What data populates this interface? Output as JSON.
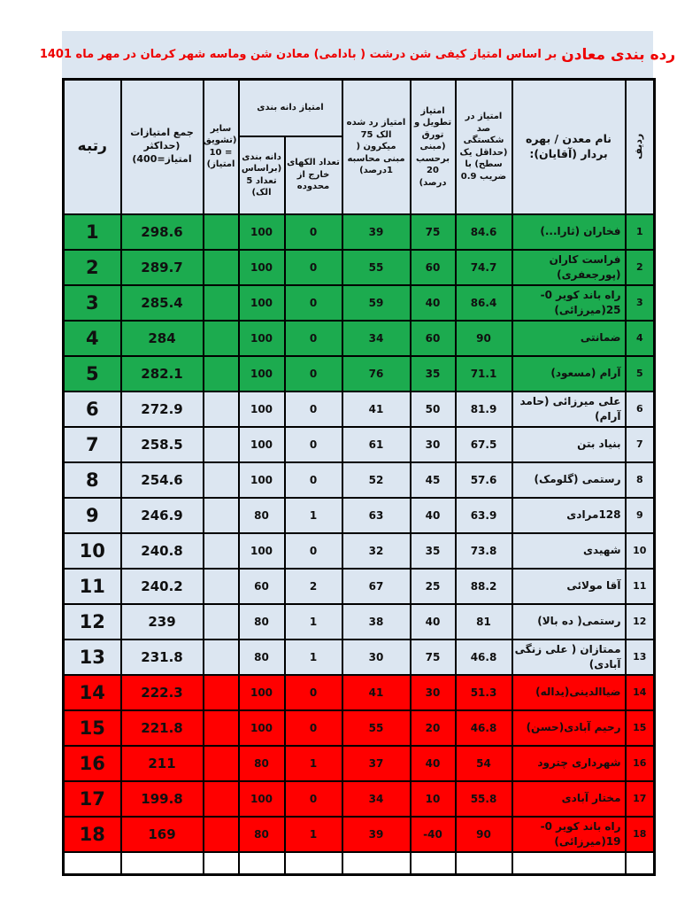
{
  "title": {
    "main": "رده بندی معادن",
    "rest": "بر اساس امتیاز کیفی  شن درشت ( بادامی) معادن شن وماسه شهر کرمان در  مهر  ماه 1401"
  },
  "colors": {
    "green": "#1cab4f",
    "red": "#ff0000",
    "light_blue_row": "#dce6f1",
    "title_red": "#ee0000"
  },
  "table": {
    "headers": {
      "radif": "ردیف",
      "name": "نام معدن / بهره بردار (آقایان):",
      "breakage": "امتیاز در صد شکستگی (حداقل یک سطح) با ضریب 0.9",
      "elongation": "امتیاز تطویل و تورق (مبنی برحسب 20 درصد)",
      "sieve75": "امتیاز  رد شده الک 75 میکرون ( مبنی محاسبه 1درصد)",
      "grading_group": "امتیاز دانه بندی",
      "out_of_range": "تعداد الکهای خارج از محدوده",
      "grading": "دانه بندی (براساس تعداد 5 الک)",
      "other": "سایر (تشویق = 10 امتیاز)",
      "total": "جمع امتیازات (حداکثر امتیاز=400)",
      "rank": "رتبه"
    },
    "rows": [
      {
        "radif": "1",
        "name": "فخاران (ثارا...)",
        "breakage": "84.6",
        "elongation": "75",
        "sieve75": "39",
        "out_of_range": "0",
        "grading": "100",
        "other": "",
        "total": "298.6",
        "rank": "1",
        "color": "green"
      },
      {
        "radif": "2",
        "name": "فراست کاران (پورجعفری)",
        "breakage": "74.7",
        "elongation": "60",
        "sieve75": "55",
        "out_of_range": "0",
        "grading": "100",
        "other": "",
        "total": "289.7",
        "rank": "2",
        "color": "green"
      },
      {
        "radif": "3",
        "name": "راه باند کویر 0-25(میرزائی)",
        "breakage": "86.4",
        "elongation": "40",
        "sieve75": "59",
        "out_of_range": "0",
        "grading": "100",
        "other": "",
        "total": "285.4",
        "rank": "3",
        "color": "green"
      },
      {
        "radif": "4",
        "name": "ضمانتی",
        "breakage": "90",
        "elongation": "60",
        "sieve75": "34",
        "out_of_range": "0",
        "grading": "100",
        "other": "",
        "total": "284",
        "rank": "4",
        "color": "green"
      },
      {
        "radif": "5",
        "name": "آرام (مسعود)",
        "breakage": "71.1",
        "elongation": "35",
        "sieve75": "76",
        "out_of_range": "0",
        "grading": "100",
        "other": "",
        "total": "282.1",
        "rank": "5",
        "color": "green"
      },
      {
        "radif": "6",
        "name": "علی میرزائی (حامد آرام)",
        "breakage": "81.9",
        "elongation": "50",
        "sieve75": "41",
        "out_of_range": "0",
        "grading": "100",
        "other": "",
        "total": "272.9",
        "rank": "6",
        "color": "blue"
      },
      {
        "radif": "7",
        "name": "بنیاد بتن",
        "breakage": "67.5",
        "elongation": "30",
        "sieve75": "61",
        "out_of_range": "0",
        "grading": "100",
        "other": "",
        "total": "258.5",
        "rank": "7",
        "color": "blue"
      },
      {
        "radif": "8",
        "name": "رستمی (گلومک)",
        "breakage": "57.6",
        "elongation": "45",
        "sieve75": "52",
        "out_of_range": "0",
        "grading": "100",
        "other": "",
        "total": "254.6",
        "rank": "8",
        "color": "blue"
      },
      {
        "radif": "9",
        "name": "128مرادی",
        "breakage": "63.9",
        "elongation": "40",
        "sieve75": "63",
        "out_of_range": "1",
        "grading": "80",
        "other": "",
        "total": "246.9",
        "rank": "9",
        "color": "blue"
      },
      {
        "radif": "10",
        "name": "شهیدی",
        "breakage": "73.8",
        "elongation": "35",
        "sieve75": "32",
        "out_of_range": "0",
        "grading": "100",
        "other": "",
        "total": "240.8",
        "rank": "10",
        "color": "blue"
      },
      {
        "radif": "11",
        "name": "آقا مولائی",
        "breakage": "88.2",
        "elongation": "25",
        "sieve75": "67",
        "out_of_range": "2",
        "grading": "60",
        "other": "",
        "total": "240.2",
        "rank": "11",
        "color": "blue"
      },
      {
        "radif": "12",
        "name": "رستمی( ده بالا)",
        "breakage": "81",
        "elongation": "40",
        "sieve75": "38",
        "out_of_range": "1",
        "grading": "80",
        "other": "",
        "total": "239",
        "rank": "12",
        "color": "blue"
      },
      {
        "radif": "13",
        "name": "ممتازان ( علی زنگی آبادی)",
        "breakage": "46.8",
        "elongation": "75",
        "sieve75": "30",
        "out_of_range": "1",
        "grading": "80",
        "other": "",
        "total": "231.8",
        "rank": "13",
        "color": "blue"
      },
      {
        "radif": "14",
        "name": "ضیاالدینی(یداله)",
        "breakage": "51.3",
        "elongation": "30",
        "sieve75": "41",
        "out_of_range": "0",
        "grading": "100",
        "other": "",
        "total": "222.3",
        "rank": "14",
        "color": "red"
      },
      {
        "radif": "15",
        "name": "رحیم آبادی(حسن)",
        "breakage": "46.8",
        "elongation": "20",
        "sieve75": "55",
        "out_of_range": "0",
        "grading": "100",
        "other": "",
        "total": "221.8",
        "rank": "15",
        "color": "red"
      },
      {
        "radif": "16",
        "name": "شهرداری چترود",
        "breakage": "54",
        "elongation": "40",
        "sieve75": "37",
        "out_of_range": "1",
        "grading": "80",
        "other": "",
        "total": "211",
        "rank": "16",
        "color": "red"
      },
      {
        "radif": "17",
        "name": "مختار آبادی",
        "breakage": "55.8",
        "elongation": "10",
        "sieve75": "34",
        "out_of_range": "0",
        "grading": "100",
        "other": "",
        "total": "199.8",
        "rank": "17",
        "color": "red"
      },
      {
        "radif": "18",
        "name": "راه باند کویر 0-19(میرزائی)",
        "breakage": "90",
        "elongation": "-40",
        "sieve75": "39",
        "out_of_range": "1",
        "grading": "80",
        "other": "",
        "total": "169",
        "rank": "18",
        "color": "red"
      }
    ]
  }
}
